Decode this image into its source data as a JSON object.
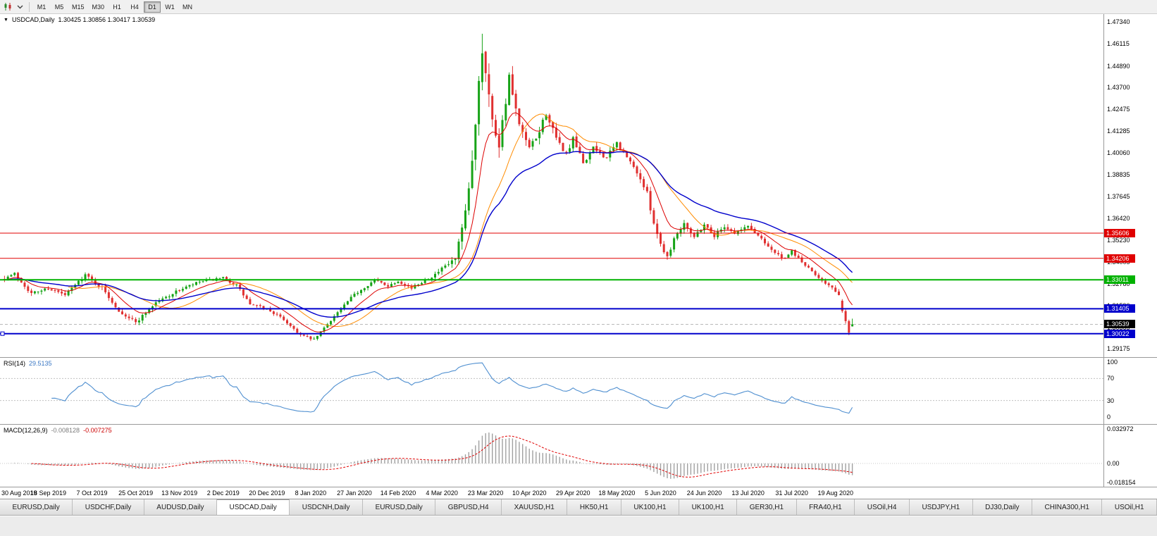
{
  "toolbar": {
    "timeframes": [
      "M1",
      "M5",
      "M15",
      "M30",
      "H1",
      "H4",
      "D1",
      "W1",
      "MN"
    ],
    "active_timeframe": "D1"
  },
  "main_chart": {
    "title_symbol": "USDCAD,Daily",
    "title_ohlc": "1.30425 1.30856 1.30417 1.30539",
    "axis_ticks": [
      "1.47340",
      "1.46115",
      "1.44890",
      "1.43700",
      "1.42475",
      "1.41285",
      "1.40060",
      "1.38835",
      "1.37645",
      "1.36420",
      "1.35230",
      "1.34005",
      "1.32780",
      "1.31590",
      "1.30365",
      "1.29175"
    ],
    "hlines": [
      {
        "value": 1.35606,
        "label": "1.35606",
        "color": "#e00000",
        "width": 1
      },
      {
        "value": 1.34206,
        "label": "1.34206",
        "color": "#e00000",
        "width": 1
      },
      {
        "value": 1.33011,
        "label": "1.33011",
        "color": "#00b200",
        "width": 2
      },
      {
        "value": 1.31405,
        "label": "1.31405",
        "color": "#0000cc",
        "width": 2
      },
      {
        "value": 1.30022,
        "label": "1.30022",
        "color": "#0000cc",
        "width": 2,
        "handle": true
      }
    ],
    "current_price": {
      "value": 1.30539,
      "label": "1.30539",
      "bg": "#000000",
      "fg": "#ffffff"
    }
  },
  "rsi": {
    "name": "RSI(14)",
    "value": "29.5135",
    "axis_labels": [
      "100",
      "70",
      "30",
      "0"
    ],
    "level_lines": [
      70,
      30
    ]
  },
  "macd": {
    "name": "MACD(12,26,9)",
    "value_main": "-0.008128",
    "value_signal": "-0.007275",
    "axis_labels": [
      "0.032972",
      "0.00",
      "-0.018154"
    ]
  },
  "time_axis": {
    "labels": [
      "30 Aug 2019",
      "18 Sep 2019",
      "7 Oct 2019",
      "25 Oct 2019",
      "13 Nov 2019",
      "2 Dec 2019",
      "20 Dec 2019",
      "8 Jan 2020",
      "27 Jan 2020",
      "14 Feb 2020",
      "4 Mar 2020",
      "23 Mar 2020",
      "10 Apr 2020",
      "29 Apr 2020",
      "18 May 2020",
      "5 Jun 2020",
      "24 Jun 2020",
      "13 Jul 2020",
      "31 Jul 2020",
      "19 Aug 2020"
    ]
  },
  "tabs": {
    "items": [
      "EURUSD,Daily",
      "USDCHF,Daily",
      "AUDUSD,Daily",
      "USDCAD,Daily",
      "USDCNH,Daily",
      "EURUSD,Daily",
      "GBPUSD,H4",
      "XAUUSD,H1",
      "HK50,H1",
      "UK100,H1",
      "UK100,H1",
      "GER30,H1",
      "FRA40,H1",
      "USOil,H4",
      "USDJPY,H1",
      "DJ30,Daily",
      "CHINA300,H1",
      "USOil,H1"
    ],
    "active_index": 3
  },
  "chart_data": {
    "type": "candlestick",
    "title": "USDCAD Daily",
    "symbol": "USDCAD",
    "period": "Daily",
    "bars": 253,
    "bars_per_label": 13,
    "seed": 7,
    "price_axis": {
      "top": 1.4777,
      "bottom": 1.2872
    },
    "rsi_period": 14,
    "rsi_range": [
      0,
      100
    ],
    "macd": {
      "fast": 12,
      "slow": 26,
      "signal": 9
    },
    "macd_range": [
      -0.018154,
      0.032972
    ],
    "colors": {
      "up": "#17a317",
      "down": "#e03030",
      "rsi": "#4f8fd0",
      "macd_hist": "#a0a0a0",
      "macd_signal": "#e00000",
      "current_line": "#b8b8b8"
    },
    "ma": [
      {
        "kind": "sma",
        "period": 20,
        "color": "#ff8c00",
        "width": 1
      },
      {
        "kind": "ema",
        "period": 10,
        "color": "#dd0000",
        "width": 1
      },
      {
        "kind": "ema",
        "period": 34,
        "color": "#0000cc",
        "width": 1.4
      }
    ],
    "price_anchors": [
      [
        0,
        1.331,
        0.003
      ],
      [
        3,
        1.3335,
        0.003
      ],
      [
        8,
        1.3225,
        0.003
      ],
      [
        13,
        1.3255,
        0.0028
      ],
      [
        18,
        1.3215,
        0.0028
      ],
      [
        24,
        1.333,
        0.0028
      ],
      [
        29,
        1.3255,
        0.003
      ],
      [
        34,
        1.313,
        0.0032
      ],
      [
        39,
        1.3065,
        0.0032
      ],
      [
        45,
        1.3175,
        0.0028
      ],
      [
        52,
        1.3245,
        0.0026
      ],
      [
        58,
        1.329,
        0.0024
      ],
      [
        65,
        1.331,
        0.0024
      ],
      [
        69,
        1.327,
        0.0026
      ],
      [
        73,
        1.3165,
        0.0026
      ],
      [
        78,
        1.314,
        0.0022
      ],
      [
        83,
        1.308,
        0.0022
      ],
      [
        88,
        1.2995,
        0.002
      ],
      [
        92,
        1.2968,
        0.002
      ],
      [
        98,
        1.31,
        0.0022
      ],
      [
        104,
        1.322,
        0.0024
      ],
      [
        110,
        1.33,
        0.0022
      ],
      [
        114,
        1.3268,
        0.0022
      ],
      [
        117,
        1.3295,
        0.0022
      ],
      [
        121,
        1.3255,
        0.0022
      ],
      [
        125,
        1.33,
        0.0024
      ],
      [
        128,
        1.333,
        0.0028
      ],
      [
        130,
        1.336,
        0.0034
      ],
      [
        134,
        1.3415,
        0.0055
      ],
      [
        137,
        1.366,
        0.009
      ],
      [
        139,
        1.395,
        0.0115
      ],
      [
        141,
        1.442,
        0.013
      ],
      [
        142,
        1.458,
        0.0125
      ],
      [
        143,
        1.448,
        0.013
      ],
      [
        145,
        1.418,
        0.012
      ],
      [
        147,
        1.406,
        0.01
      ],
      [
        150,
        1.442,
        0.0085
      ],
      [
        153,
        1.415,
        0.0075
      ],
      [
        156,
        1.403,
        0.0065
      ],
      [
        158,
        1.408,
        0.006
      ],
      [
        161,
        1.423,
        0.0058
      ],
      [
        164,
        1.408,
        0.0052
      ],
      [
        167,
        1.4,
        0.005
      ],
      [
        169,
        1.408,
        0.0048
      ],
      [
        172,
        1.395,
        0.0048
      ],
      [
        175,
        1.403,
        0.0045
      ],
      [
        179,
        1.398,
        0.0042
      ],
      [
        182,
        1.406,
        0.004
      ],
      [
        185,
        1.398,
        0.004
      ],
      [
        188,
        1.39,
        0.004
      ],
      [
        191,
        1.378,
        0.0042
      ],
      [
        193,
        1.362,
        0.0046
      ],
      [
        195,
        1.35,
        0.0046
      ],
      [
        197,
        1.343,
        0.0042
      ],
      [
        199,
        1.353,
        0.004
      ],
      [
        202,
        1.362,
        0.0038
      ],
      [
        205,
        1.354,
        0.0036
      ],
      [
        208,
        1.361,
        0.0034
      ],
      [
        211,
        1.3545,
        0.0032
      ],
      [
        214,
        1.36,
        0.0032
      ],
      [
        217,
        1.356,
        0.003
      ],
      [
        221,
        1.36,
        0.003
      ],
      [
        225,
        1.353,
        0.0028
      ],
      [
        229,
        1.345,
        0.0028
      ],
      [
        232,
        1.3415,
        0.0026
      ],
      [
        234,
        1.346,
        0.0026
      ],
      [
        237,
        1.34,
        0.0024
      ],
      [
        240,
        1.3345,
        0.0024
      ],
      [
        243,
        1.33,
        0.0022
      ],
      [
        246,
        1.3255,
        0.0022
      ],
      [
        248,
        1.321,
        0.0024
      ],
      [
        252,
        1.3054,
        0.003
      ]
    ],
    "peak": {
      "bar": 142,
      "high": 1.4668
    },
    "forced_bars": [
      {
        "from_end": 4,
        "o": 1.3185,
        "h": 1.3194,
        "l": 1.3118,
        "c": 1.3128
      },
      {
        "from_end": 3,
        "o": 1.3128,
        "h": 1.3136,
        "l": 1.3058,
        "c": 1.3072
      },
      {
        "from_end": 2,
        "o": 1.3072,
        "h": 1.308,
        "l": 1.2994,
        "c": 1.3008
      },
      {
        "from_end": 1,
        "o": 1.30425,
        "h": 1.30856,
        "l": 1.30417,
        "c": 1.30539
      }
    ]
  }
}
